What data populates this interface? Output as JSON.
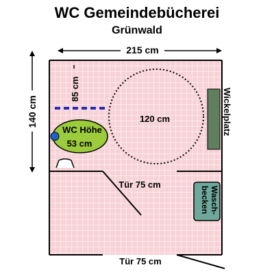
{
  "title": "WC Gemeindebücherei",
  "subtitle": "Grünwald",
  "dimensions": {
    "width": "215 cm",
    "depth": "140 cm",
    "grab_bar": "85 cm",
    "turning_circle": "120 cm",
    "wc_height_line1": "WC Höhe",
    "wc_height_line2": "53 cm",
    "inner_door": "Tür 75 cm",
    "outer_door": "Tür 75 cm"
  },
  "fixtures": {
    "changing_table": "Wickelplatz",
    "sink_line1": "Wasch-",
    "sink_line2": "becken"
  },
  "colors": {
    "floor": "#f7d2d6",
    "grid": "#ffffff",
    "wc_seat": "#9ccc3c",
    "changing_table": "#5f7f5f",
    "sink": "#6fa89a",
    "wall": "#000000",
    "grab_bar": "#2a2ab0",
    "marker": "#1e64c8"
  }
}
